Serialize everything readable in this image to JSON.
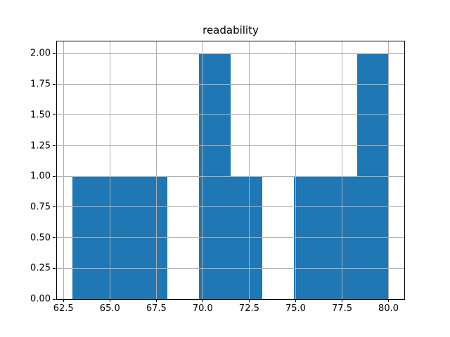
{
  "chart_data": {
    "type": "bar",
    "subtype": "histogram",
    "title": "readability",
    "xlabel": "",
    "ylabel": "",
    "bin_edges": [
      63.0,
      64.7,
      66.4,
      68.1,
      69.8,
      71.5,
      73.2,
      74.9,
      76.6,
      78.3,
      80.0
    ],
    "counts": [
      1,
      1,
      1,
      0,
      2,
      1,
      0,
      1,
      1,
      2
    ],
    "xlim": [
      62.15,
      80.85
    ],
    "ylim": [
      0,
      2.1
    ],
    "xticks": {
      "values": [
        62.5,
        65.0,
        67.5,
        70.0,
        72.5,
        75.0,
        77.5,
        80.0
      ],
      "labels": [
        "62.5",
        "65.0",
        "67.5",
        "70.0",
        "72.5",
        "75.0",
        "77.5",
        "80.0"
      ]
    },
    "yticks": {
      "values": [
        0.0,
        0.25,
        0.5,
        0.75,
        1.0,
        1.25,
        1.5,
        1.75,
        2.0
      ],
      "labels": [
        "0.00",
        "0.25",
        "0.50",
        "0.75",
        "1.00",
        "1.25",
        "1.50",
        "1.75",
        "2.00"
      ]
    },
    "grid": true,
    "grid_above_bars": true,
    "legend": false,
    "colors": {
      "bar": "#1f77b4",
      "grid": "#b0b0b0",
      "spine": "#000000",
      "background": "#ffffff",
      "text": "#000000"
    }
  }
}
